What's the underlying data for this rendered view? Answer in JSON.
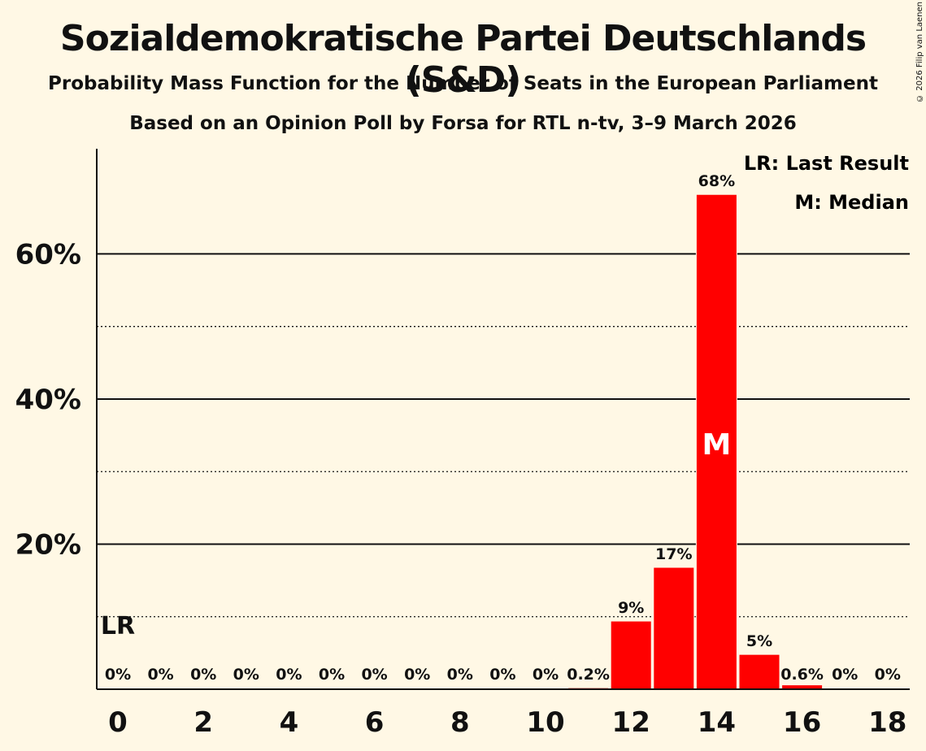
{
  "title": "Sozialdemokratische Partei Deutschlands (S&D)",
  "subtitle1": "Probability Mass Function for the Number of Seats in the European Parliament",
  "subtitle2": "Based on an Opinion Poll by Forsa for RTL n-tv, 3–9 March 2026",
  "copyright": "© 2026 Filip van Laenen",
  "legend": {
    "last_result": "LR: Last Result",
    "median": "M: Median"
  },
  "markers": {
    "last_result_label": "LR",
    "median_label": "M",
    "last_result_seats": 0,
    "median_seats": 14
  },
  "colors": {
    "bar": "#FF0000",
    "background": "#FFF8E5",
    "text": "#111111",
    "median_text": "#FFFFFF"
  },
  "chart_data": {
    "type": "bar",
    "title": "Sozialdemokratische Partei Deutschlands (S&D)",
    "xlabel": "",
    "ylabel": "",
    "categories": [
      0,
      1,
      2,
      3,
      4,
      5,
      6,
      7,
      8,
      9,
      10,
      11,
      12,
      13,
      14,
      15,
      16,
      17,
      18
    ],
    "values": [
      0,
      0,
      0,
      0,
      0,
      0,
      0,
      0,
      0,
      0,
      0,
      0.2,
      9.4,
      16.8,
      68.2,
      4.8,
      0.6,
      0,
      0
    ],
    "value_labels": [
      "0%",
      "0%",
      "0%",
      "0%",
      "0%",
      "0%",
      "0%",
      "0%",
      "0%",
      "0%",
      "0%",
      "0.2%",
      "9%",
      "17%",
      "68%",
      "5%",
      "0.6%",
      "0%",
      "0%"
    ],
    "x_tick_labels": [
      "0",
      "2",
      "4",
      "6",
      "8",
      "10",
      "12",
      "14",
      "16",
      "18"
    ],
    "x_tick_values": [
      0,
      2,
      4,
      6,
      8,
      10,
      12,
      14,
      16,
      18
    ],
    "y_tick_labels": [
      "20%",
      "40%",
      "60%"
    ],
    "y_tick_values": [
      20,
      40,
      60
    ],
    "y_minor_values": [
      10,
      30,
      50
    ],
    "ylim": [
      0,
      74.5
    ],
    "grid": true,
    "legend_position": "top-right"
  }
}
